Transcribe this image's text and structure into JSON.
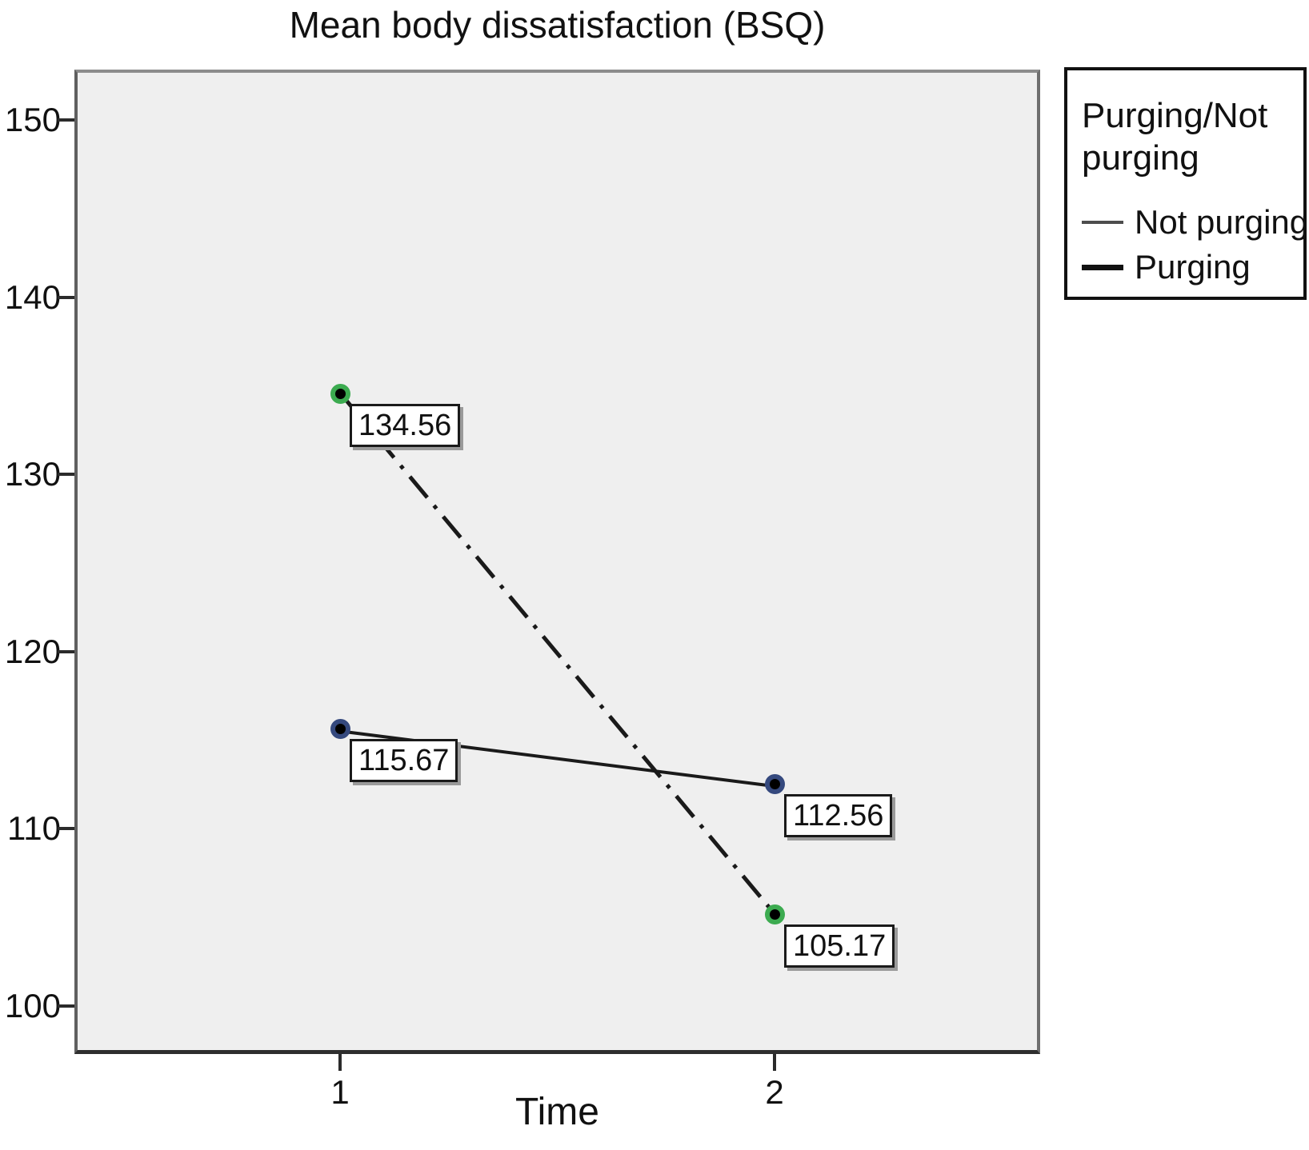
{
  "chart_data": {
    "type": "line",
    "title": "Mean body dissatisfaction (BSQ)",
    "xlabel": "Time",
    "ylabel": "",
    "x": [
      1,
      2
    ],
    "x_tick_labels": [
      "1",
      "2"
    ],
    "y_ticks": [
      150,
      140,
      130,
      120,
      110,
      100
    ],
    "ylim": [
      97,
      153
    ],
    "xlim": [
      0.39,
      2.61
    ],
    "grid": false,
    "plot_background": "#efefef",
    "legend": {
      "title": "Purging/Not purging",
      "position": "outside-top-right"
    },
    "series": [
      {
        "name": "Not purging",
        "values": [
          115.67,
          112.56
        ],
        "point_labels": [
          "115.67",
          "112.56"
        ],
        "line_style": "solid",
        "line_width": 4,
        "line_color": "#1a1a1a",
        "marker_color": "#35497e"
      },
      {
        "name": "Purging",
        "values": [
          134.56,
          105.17
        ],
        "point_labels": [
          "134.56",
          "105.17"
        ],
        "line_style": "dash-dot",
        "line_width": 5,
        "line_color": "#1a1a1a",
        "marker_color": "#3cab50"
      }
    ]
  }
}
